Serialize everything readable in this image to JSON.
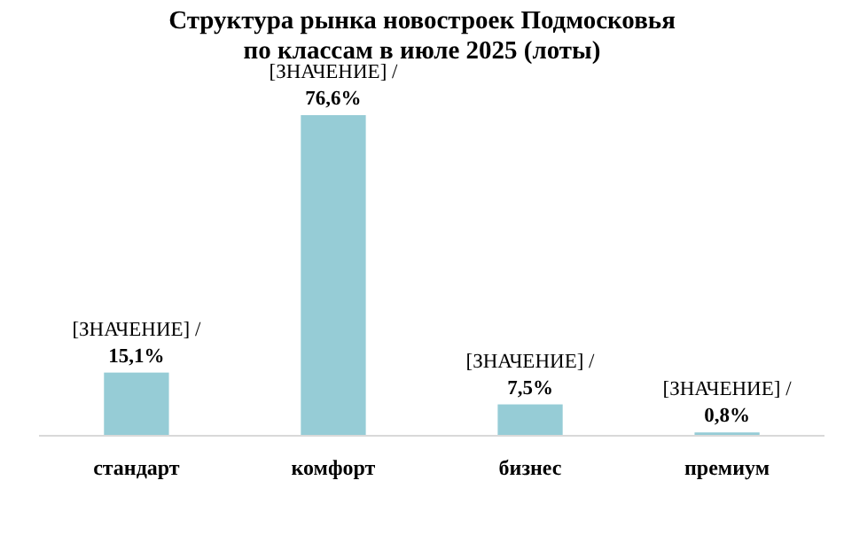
{
  "chart_data": {
    "type": "bar",
    "title": "Структура рынка новостроек Подмосковья\nпо классам в июле 2025 (лоты)",
    "categories": [
      "стандарт",
      "комфорт",
      "бизнес",
      "премиум"
    ],
    "values": [
      15.1,
      76.6,
      7.5,
      0.8
    ],
    "value_labels": [
      "[ЗНАЧЕНИЕ]  /\n15,1%",
      "[ЗНАЧЕНИЕ]  /\n76,6%",
      "[ЗНАЧЕНИЕ]  /\n7,5%",
      "[ЗНАЧЕНИЕ]  /\n0,8%"
    ],
    "color": "#96ccd6"
  }
}
